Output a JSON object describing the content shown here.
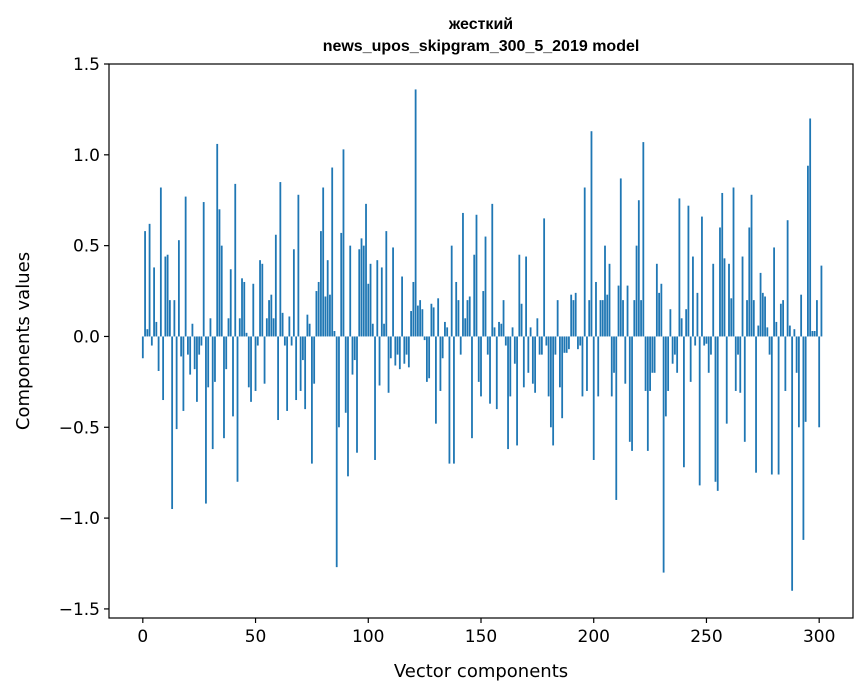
{
  "chart_data": {
    "type": "bar",
    "title_line1": "жесткий",
    "title_line2": "news_upos_skipgram_300_5_2019 model",
    "xlabel": "Vector components",
    "ylabel": "Components values",
    "xlim": [
      -15,
      315
    ],
    "ylim": [
      -1.55,
      1.5
    ],
    "xticks": [
      0,
      50,
      100,
      150,
      200,
      250,
      300
    ],
    "xtick_labels": [
      "0",
      "50",
      "100",
      "150",
      "200",
      "250",
      "300"
    ],
    "yticks": [
      -1.5,
      -1.0,
      -0.5,
      0.0,
      0.5,
      1.0,
      1.5
    ],
    "ytick_labels": [
      "−1.5",
      "−1.0",
      "−0.5",
      "0.0",
      "0.5",
      "1.0",
      "1.5"
    ],
    "grid": false,
    "color": "#1f77b4",
    "values": [
      -0.12,
      0.58,
      0.04,
      0.62,
      -0.05,
      0.38,
      0.08,
      -0.19,
      0.82,
      -0.35,
      0.44,
      0.45,
      0.2,
      -0.95,
      0.2,
      -0.51,
      0.53,
      -0.11,
      -0.41,
      0.77,
      -0.1,
      -0.21,
      0.07,
      -0.18,
      -0.36,
      -0.1,
      -0.05,
      0.74,
      -0.92,
      -0.28,
      0.1,
      -0.62,
      -0.25,
      1.06,
      0.7,
      0.5,
      -0.56,
      -0.18,
      0.1,
      0.37,
      -0.44,
      0.84,
      -0.8,
      0.1,
      0.32,
      0.3,
      0.02,
      -0.28,
      -0.36,
      0.29,
      -0.3,
      -0.05,
      0.42,
      0.4,
      -0.26,
      0.1,
      0.2,
      0.23,
      0.1,
      0.56,
      -0.46,
      0.85,
      0.13,
      -0.05,
      -0.41,
      0.11,
      -0.05,
      0.48,
      -0.35,
      0.78,
      -0.3,
      -0.13,
      -0.4,
      0.12,
      0.07,
      -0.7,
      -0.26,
      0.25,
      0.3,
      0.58,
      0.82,
      0.22,
      0.42,
      0.23,
      0.93,
      0.03,
      -1.27,
      -0.5,
      0.57,
      1.03,
      -0.42,
      -0.77,
      0.5,
      -0.21,
      -0.13,
      -0.64,
      0.48,
      0.54,
      0.5,
      0.73,
      0.29,
      0.4,
      0.07,
      -0.68,
      0.42,
      -0.27,
      0.38,
      0.07,
      0.58,
      -0.31,
      -0.12,
      0.49,
      -0.16,
      -0.1,
      -0.18,
      0.33,
      -0.15,
      -0.1,
      -0.17,
      0.14,
      0.3,
      1.36,
      0.17,
      0.2,
      0.15,
      -0.02,
      -0.25,
      -0.23,
      0.18,
      0.16,
      -0.48,
      0.21,
      -0.3,
      -0.12,
      0.08,
      0.05,
      -0.7,
      0.5,
      -0.7,
      0.3,
      0.2,
      -0.1,
      0.68,
      0.1,
      0.2,
      0.22,
      -0.56,
      0.45,
      0.67,
      -0.25,
      -0.33,
      0.25,
      0.55,
      -0.1,
      -0.37,
      0.73,
      0.05,
      -0.4,
      0.08,
      0.07,
      0.2,
      -0.05,
      -0.62,
      -0.33,
      0.05,
      -0.15,
      -0.6,
      0.45,
      0.18,
      -0.28,
      0.44,
      -0.2,
      0.05,
      -0.26,
      -0.31,
      0.1,
      -0.1,
      -0.1,
      0.65,
      -0.05,
      -0.33,
      -0.5,
      -0.6,
      -0.1,
      0.2,
      -0.28,
      -0.45,
      -0.09,
      -0.09,
      -0.07,
      0.23,
      0.2,
      0.24,
      -0.07,
      -0.05,
      -0.33,
      0.82,
      -0.3,
      0.2,
      1.13,
      -0.68,
      0.3,
      -0.33,
      0.2,
      0.2,
      0.5,
      0.23,
      0.4,
      -0.33,
      -0.2,
      -0.9,
      0.28,
      0.87,
      0.2,
      -0.26,
      0.28,
      -0.58,
      -0.63,
      0.2,
      0.5,
      0.75,
      0.2,
      1.07,
      -0.3,
      -0.63,
      -0.3,
      -0.2,
      -0.2,
      0.4,
      0.24,
      0.29,
      -1.3,
      -0.44,
      -0.3,
      0.15,
      -0.15,
      -0.1,
      -0.2,
      0.76,
      0.1,
      -0.72,
      0.15,
      0.72,
      -0.25,
      0.44,
      -0.05,
      0.24,
      -0.82,
      0.66,
      -0.05,
      -0.04,
      -0.2,
      -0.1,
      0.4,
      -0.8,
      -0.85,
      0.6,
      0.79,
      0.43,
      -0.48,
      0.4,
      0.21,
      0.82,
      -0.3,
      -0.1,
      -0.31,
      0.44,
      -0.58,
      0.2,
      0.6,
      0.78,
      0.2,
      -0.75,
      0.06,
      0.35,
      0.24,
      0.22,
      0.05,
      -0.1,
      -0.76,
      0.49,
      0.08,
      -0.76,
      0.18,
      0.2,
      -0.3,
      0.64,
      0.06,
      -1.4,
      0.04,
      -0.2,
      -0.5,
      0.23,
      -1.12,
      -0.47,
      0.94,
      1.2,
      0.03,
      0.03,
      0.2,
      -0.5,
      0.39
    ]
  }
}
